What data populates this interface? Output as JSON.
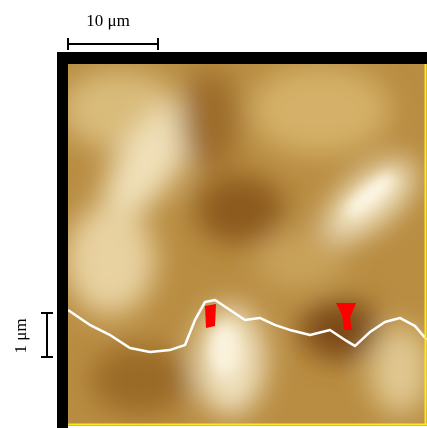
{
  "scale_bars": {
    "horizontal": "10 μm",
    "vertical": "1 μm"
  }
}
